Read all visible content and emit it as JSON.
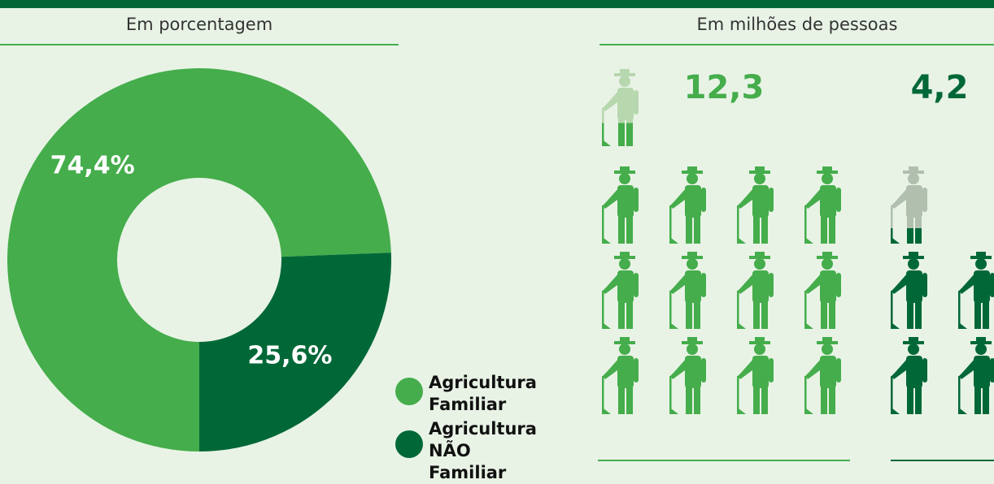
{
  "chart_data": [
    {
      "type": "pie",
      "subtitle": "Em porcentagem",
      "categories": [
        "Agricultura Familiar",
        "Agricultura NÃO Familiar"
      ],
      "values": [
        74.4,
        25.6
      ],
      "value_labels": [
        "74,4%",
        "25,6%"
      ],
      "colors": [
        "#45ad4b",
        "#006837"
      ],
      "donut": true
    },
    {
      "type": "pictograph",
      "subtitle": "Em milhões de pessoas",
      "categories": [
        "Agricultura Familiar",
        "Agricultura NÃO Familiar"
      ],
      "values": [
        12.3,
        4.2
      ],
      "value_labels": [
        "12,3",
        "4,2"
      ],
      "colors": [
        "#45ad4b",
        "#006837"
      ]
    }
  ]
}
